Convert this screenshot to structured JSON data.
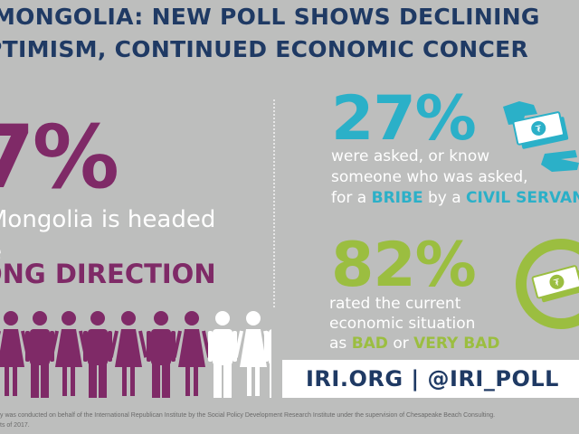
{
  "title": {
    "line1": "MONGOLIA: NEW POLL SHOWS DECLINING",
    "line2": "PTIMISM, CONTINUED ECONOMIC CONCER"
  },
  "left_stat": {
    "value": "7%",
    "line1": "Mongolia is headed",
    "line2": "e",
    "line3": "ONG DIRECTION"
  },
  "stat1": {
    "value": "27%",
    "line1": "were asked, or know",
    "line2": "someone who was asked,",
    "line3_prefix": "for a ",
    "line3_hl1": "BRIBE",
    "line3_mid": " by a ",
    "line3_hl2": "CIVIL SERVANT"
  },
  "stat2": {
    "value": "82%",
    "line1": "rated the current",
    "line2": "economic situation",
    "line3_prefix": "as ",
    "line3_hl1": "BAD",
    "line3_mid": " or ",
    "line3_hl2": "VERY BAD"
  },
  "footer": {
    "text": "IRI.ORG  |  @IRI_POLL"
  },
  "footnote": {
    "line1": "y was conducted on behalf of the International Republican Institute by the Social Policy Development Research Institute under the supervision of Chesapeake Beach Consulting.",
    "line2": "ts of 2017."
  },
  "people_chart": {
    "total": 10,
    "highlighted": 7,
    "colors": {
      "highlight": "#7f2a67",
      "rest": "#ffffff"
    }
  },
  "colors": {
    "navy": "#1f3a64",
    "purple": "#7f2a67",
    "teal": "#2bb0c8",
    "green": "#9bbe40",
    "background": "#bdbebd"
  },
  "icons": {
    "bribe": "hand-money-icon",
    "economy": "money-circle-icon"
  }
}
